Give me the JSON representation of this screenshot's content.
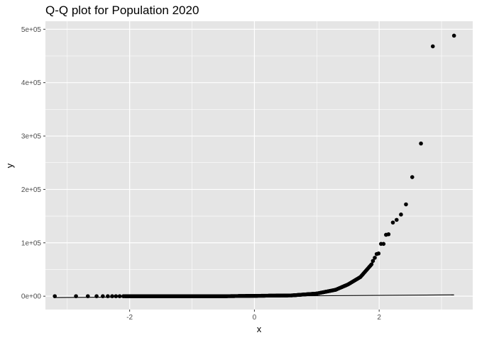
{
  "chart_data": {
    "type": "scatter",
    "title": "Q-Q plot for Population 2020",
    "xlabel": "x",
    "ylabel": "y",
    "xlim": [
      -3.35,
      3.5
    ],
    "ylim": [
      -25000,
      515000
    ],
    "x_ticks": [
      -2,
      0,
      2
    ],
    "x_tick_labels": [
      "-2",
      "0",
      "2"
    ],
    "y_ticks": [
      0,
      100000,
      200000,
      300000,
      400000,
      500000
    ],
    "y_tick_labels": [
      "0e+00",
      "1e+05",
      "2e+05",
      "3e+05",
      "4e+05",
      "5e+05"
    ],
    "grid": true,
    "panel_background": "#e5e5e5",
    "grid_color": "#ffffff",
    "point_color": "#000000",
    "reference_line": {
      "x": [
        -3.2,
        3.2
      ],
      "y": [
        -2500,
        2500
      ]
    },
    "sparse_points": [
      {
        "x": -3.2,
        "y": 0
      },
      {
        "x": -2.86,
        "y": 0
      },
      {
        "x": -2.67,
        "y": 0
      },
      {
        "x": -2.53,
        "y": 0
      },
      {
        "x": -2.43,
        "y": 0
      },
      {
        "x": -2.35,
        "y": 0
      },
      {
        "x": -2.28,
        "y": 0
      },
      {
        "x": -2.22,
        "y": 0
      },
      {
        "x": -2.16,
        "y": 0
      },
      {
        "x": -2.1,
        "y": 0
      },
      {
        "x": 1.9,
        "y": 66000
      },
      {
        "x": 1.93,
        "y": 72000
      },
      {
        "x": 1.96,
        "y": 79000
      },
      {
        "x": 1.99,
        "y": 80000
      },
      {
        "x": 2.03,
        "y": 98000
      },
      {
        "x": 2.07,
        "y": 98000
      },
      {
        "x": 2.11,
        "y": 115000
      },
      {
        "x": 2.15,
        "y": 116000
      },
      {
        "x": 2.22,
        "y": 138000
      },
      {
        "x": 2.28,
        "y": 143000
      },
      {
        "x": 2.35,
        "y": 153000
      },
      {
        "x": 2.43,
        "y": 172000
      },
      {
        "x": 2.53,
        "y": 223000
      },
      {
        "x": 2.67,
        "y": 286000
      },
      {
        "x": 2.86,
        "y": 468000
      },
      {
        "x": 3.2,
        "y": 488000
      }
    ],
    "dense_segments": [
      {
        "x_from": -2.08,
        "x_to": -0.5,
        "y_from": 0,
        "y_to": 0,
        "n": 320
      },
      {
        "x_from": -0.5,
        "x_to": 0.6,
        "y_from": 0,
        "y_to": 1500,
        "n": 260
      },
      {
        "x_from": 0.6,
        "x_to": 1.0,
        "y_from": 1500,
        "y_to": 5000,
        "n": 120
      },
      {
        "x_from": 1.0,
        "x_to": 1.3,
        "y_from": 5000,
        "y_to": 12000,
        "n": 90
      },
      {
        "x_from": 1.3,
        "x_to": 1.5,
        "y_from": 12000,
        "y_to": 22000,
        "n": 60
      },
      {
        "x_from": 1.5,
        "x_to": 1.7,
        "y_from": 22000,
        "y_to": 36000,
        "n": 50
      },
      {
        "x_from": 1.7,
        "x_to": 1.88,
        "y_from": 36000,
        "y_to": 60000,
        "n": 40
      }
    ]
  }
}
